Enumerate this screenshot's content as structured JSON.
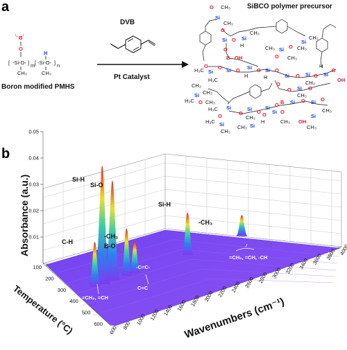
{
  "panel_a": {
    "letter": "a",
    "title": "SiBCO polymer precursor",
    "reagent": "DVB",
    "catalyst": "Pt Catalyst",
    "reactant_label": "Boron modified PMHS",
    "subscript_m": "m",
    "subscript_n": "n"
  },
  "panel_b": {
    "letter": "b",
    "y_axis_label": "Absorbance (a.u.)",
    "temp_axis_label": "Temperature (°C)",
    "wavenumber_axis_label": "Wavenumbers (cm⁻¹)",
    "peak_labels": [
      "Si-H",
      "Si-O",
      "-CH₃",
      "C-H",
      "B-O",
      "Si-H",
      "-CH₃"
    ],
    "annotations": [
      "=CH₂, =CH",
      "-C=C-",
      "C≡C",
      "=CH₂, =CH, -CH"
    ]
  },
  "chart_data": {
    "type": "area",
    "title": "",
    "xlabel": "Wavenumbers (cm⁻¹)",
    "ylabel": "Absorbance (a.u.)",
    "zlabel": "Temperature (°C)",
    "x_ticks": [
      600,
      800,
      1000,
      1200,
      1400,
      1600,
      1800,
      2000,
      2200,
      2400,
      2600,
      2800,
      3000,
      3200,
      3400,
      3600,
      3800,
      4000
    ],
    "temperature_ticks": [
      100,
      200,
      300,
      400,
      500,
      600
    ],
    "y_ticks": [
      0.01,
      0.02,
      0.03,
      0.04,
      0.05
    ],
    "ylim": [
      0,
      0.05
    ],
    "peaks": [
      {
        "label": "Si-H",
        "wavenumber": 900,
        "absorbance": 0.045
      },
      {
        "label": "Si-O",
        "wavenumber": 1050,
        "absorbance": 0.038
      },
      {
        "label": "-CH₃",
        "wavenumber": 1260,
        "absorbance": 0.018
      },
      {
        "label": "C-H",
        "wavenumber": 790,
        "absorbance": 0.017
      },
      {
        "label": "B-O",
        "wavenumber": 1380,
        "absorbance": 0.012
      },
      {
        "label": "Si-H",
        "wavenumber": 2160,
        "absorbance": 0.016
      },
      {
        "label": "-CH₃",
        "wavenumber": 2960,
        "absorbance": 0.008
      }
    ]
  },
  "colors": {
    "surface_low": "#7a3cf0",
    "peak_mid": "#3cd0a0",
    "peak_high": "#e82020",
    "red_atom": "#e0182c",
    "blue_atom": "#1a3fd6"
  }
}
